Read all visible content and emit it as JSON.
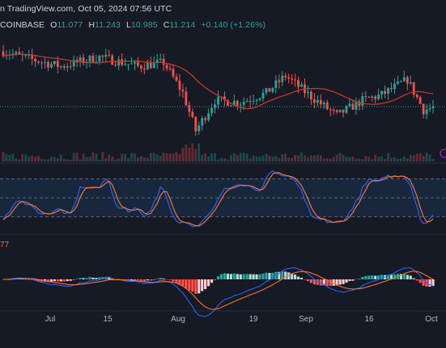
{
  "header": {
    "credit": "n TradingView.com, Oct 05, 2024 07:56 UTC",
    "symbol_suffix": "COINBASE",
    "o_label": "O",
    "o_value": "11.077",
    "h_label": "H",
    "h_value": "11.243",
    "l_label": "L",
    "l_value": "10.985",
    "c_label": "C",
    "c_value": "11.214",
    "change": "+0.140 (+1.26%)"
  },
  "macd_label_fragment": "77",
  "colors": {
    "background": "#161a25",
    "up": "#26a69a",
    "down": "#ef5350",
    "ma": "#c0392b",
    "blue": "#2962ff",
    "orange": "#f2762e",
    "hist_up_strong": "#26a69a",
    "hist_up_weak": "#b2dfdb",
    "hist_down_strong": "#ff5252",
    "hist_down_weak": "#ffcdd2",
    "stoch_band": "#1e3350",
    "price_dotted": "#26a69a"
  },
  "chart_data": {
    "type": "candlestick",
    "title": "",
    "x_ticks": [
      "Jul",
      "15",
      "Aug",
      "19",
      "Sep",
      "16",
      "Oct"
    ],
    "last_close_series_hint": [
      11.214
    ],
    "price_start": 12.55,
    "price_end": 11.21,
    "price_low": 10.2,
    "stoch_levels": [
      80,
      50,
      20
    ],
    "panes": [
      "price",
      "volume",
      "stochastic",
      "macd"
    ]
  }
}
